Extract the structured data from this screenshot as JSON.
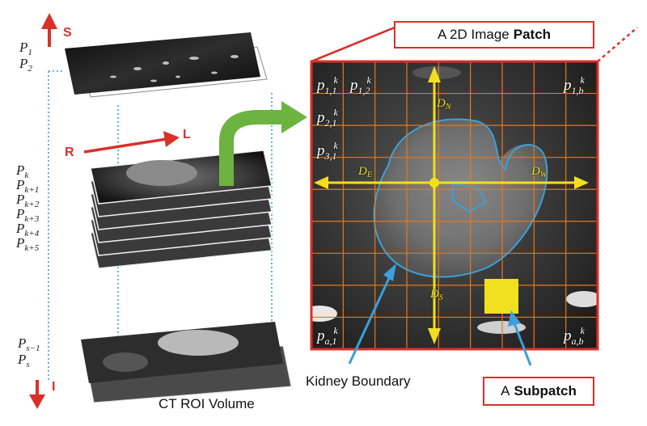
{
  "volume": {
    "caption": "CT ROI Volume",
    "directions": {
      "superior": "S",
      "inferior": "I",
      "right": "R",
      "left": "L"
    },
    "top_slices": [
      {
        "sym": "P",
        "sub": "1"
      },
      {
        "sym": "P",
        "sub": "2"
      }
    ],
    "middle_slices": [
      {
        "sym": "P",
        "sub": "k"
      },
      {
        "sym": "P",
        "sub": "k+1"
      },
      {
        "sym": "P",
        "sub": "k+2"
      },
      {
        "sym": "P",
        "sub": "k+3"
      },
      {
        "sym": "P",
        "sub": "k+4"
      },
      {
        "sym": "P",
        "sub": "k+5"
      }
    ],
    "bottom_slices": [
      {
        "sym": "P",
        "sub": "s−1"
      },
      {
        "sym": "P",
        "sub": "s"
      }
    ]
  },
  "patch": {
    "title_prefix": "A 2D Image",
    "title_bold": "Patch",
    "cells": [
      {
        "sym": "p",
        "sub": "1,1",
        "sup": "k"
      },
      {
        "sym": "p",
        "sub": "1,2",
        "sup": "k"
      },
      {
        "sym": "p",
        "sub": "1,b",
        "sup": "k"
      },
      {
        "sym": "p",
        "sub": "2,1",
        "sup": "k"
      },
      {
        "sym": "p",
        "sub": "3,1",
        "sup": "k"
      },
      {
        "sym": "p",
        "sub": "a,1",
        "sup": "k"
      },
      {
        "sym": "p",
        "sub": "a,b",
        "sup": "k"
      }
    ],
    "distances": [
      {
        "sym": "D",
        "sub": "N"
      },
      {
        "sym": "D",
        "sub": "E"
      },
      {
        "sym": "D",
        "sub": "W"
      },
      {
        "sym": "D",
        "sub": "S"
      }
    ]
  },
  "annotations": {
    "kidney_boundary": "Kidney Boundary",
    "subpatch_prefix": "A",
    "subpatch_bold": "Subpatch"
  },
  "colors": {
    "red": "#d9302a",
    "green": "#6cb33f",
    "grid": "#e07a1f",
    "yellow": "#f0e020",
    "cyan": "#3aa0dc"
  }
}
